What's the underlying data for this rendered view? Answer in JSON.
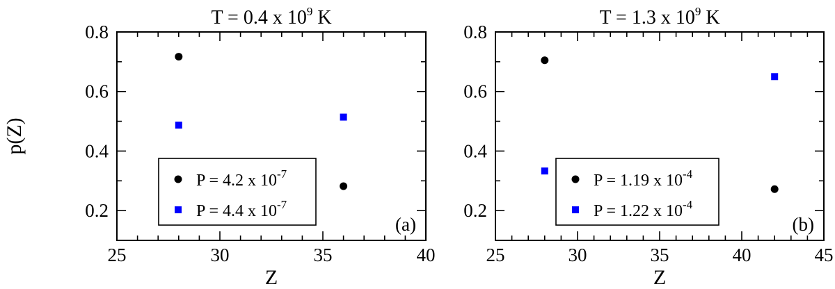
{
  "chart_data": [
    {
      "type": "scatter",
      "title": {
        "base": "T = 0.4 x 10",
        "exponent": "9",
        "suffix": " K"
      },
      "xlabel": "Z",
      "ylabel": "p(Z)",
      "xlim": [
        25,
        40
      ],
      "ylim": [
        0.1,
        0.8
      ],
      "xticks": [
        "25",
        "30",
        "35",
        "40"
      ],
      "yticks": [
        "0.2",
        "0.4",
        "0.6",
        "0.8"
      ],
      "grid": false,
      "legend_position": "bottom-center",
      "panel_label": "(a)",
      "series": [
        {
          "name": {
            "base": "P = 4.2 x 10",
            "exponent": "-7"
          },
          "marker": "circle",
          "color": "#000000",
          "points": [
            {
              "x": 28,
              "y": 0.717
            },
            {
              "x": 36,
              "y": 0.282
            }
          ]
        },
        {
          "name": {
            "base": "P = 4.4 x 10",
            "exponent": "-7"
          },
          "marker": "square",
          "color": "#0000ff",
          "points": [
            {
              "x": 28,
              "y": 0.487
            },
            {
              "x": 36,
              "y": 0.514
            }
          ]
        }
      ]
    },
    {
      "type": "scatter",
      "title": {
        "base": "T = 1.3 x 10",
        "exponent": "9",
        "suffix": " K"
      },
      "xlabel": "Z",
      "ylabel": "",
      "xlim": [
        25,
        45
      ],
      "ylim": [
        0.1,
        0.8
      ],
      "xticks": [
        "25",
        "30",
        "35",
        "40",
        "45"
      ],
      "yticks": [
        "0.2",
        "0.4",
        "0.6",
        "0.8"
      ],
      "grid": false,
      "legend_position": "bottom-center",
      "panel_label": "(b)",
      "series": [
        {
          "name": {
            "base": "P = 1.19 x 10",
            "exponent": "-4"
          },
          "marker": "circle",
          "color": "#000000",
          "points": [
            {
              "x": 28,
              "y": 0.705
            },
            {
              "x": 42,
              "y": 0.272
            }
          ]
        },
        {
          "name": {
            "base": "P = 1.22 x 10",
            "exponent": "-4"
          },
          "marker": "square",
          "color": "#0000ff",
          "points": [
            {
              "x": 28,
              "y": 0.333
            },
            {
              "x": 42,
              "y": 0.65
            }
          ]
        }
      ]
    }
  ]
}
